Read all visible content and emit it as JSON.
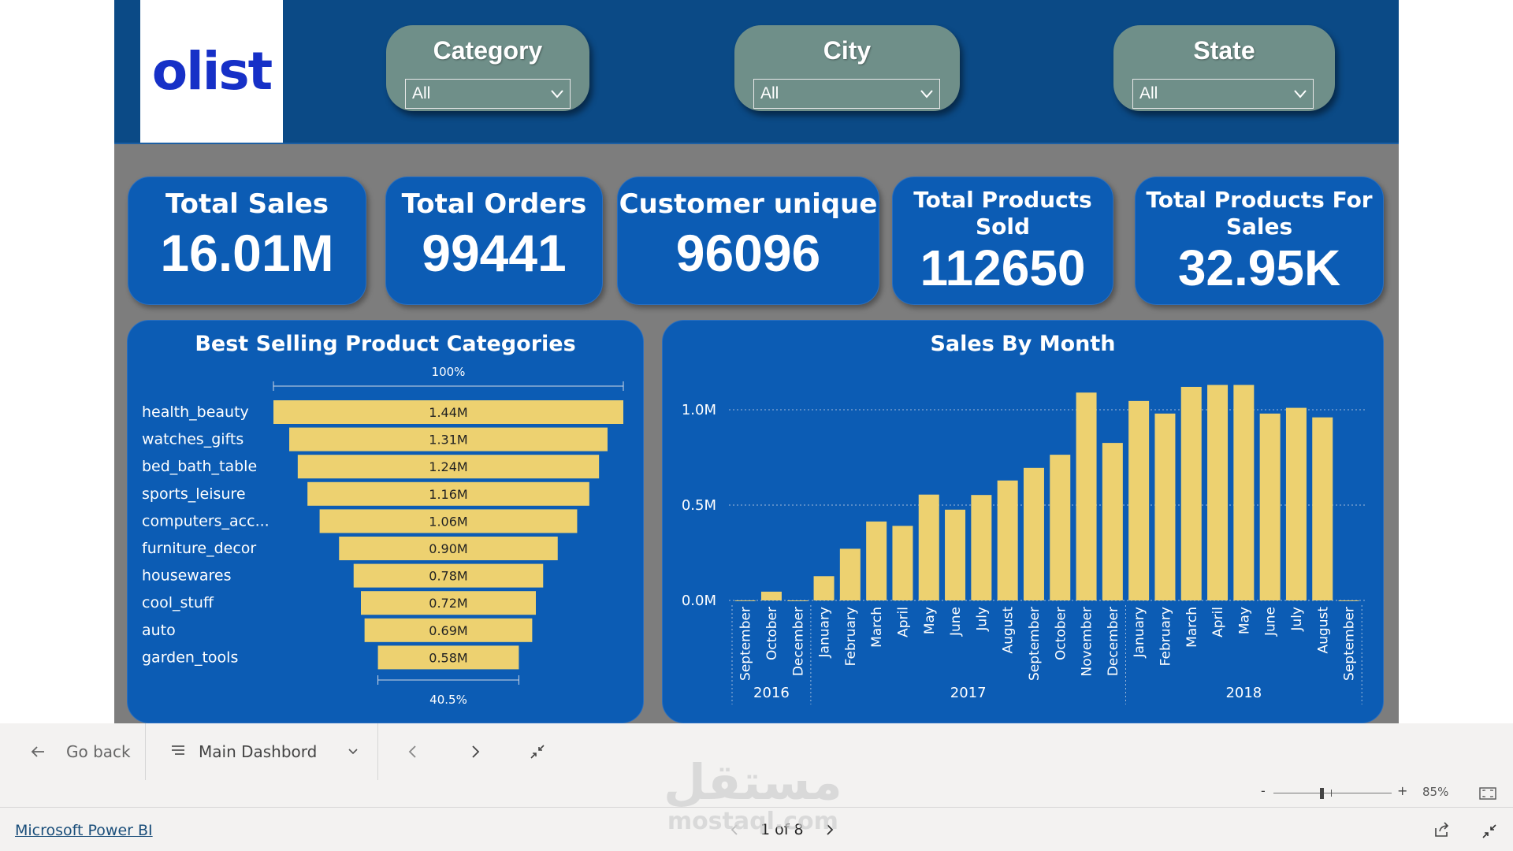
{
  "logo": {
    "text": "olist"
  },
  "filters": [
    {
      "label": "Category",
      "value": "All"
    },
    {
      "label": "City",
      "value": "All"
    },
    {
      "label": "State",
      "value": "All"
    }
  ],
  "kpis": [
    {
      "label": "Total Sales",
      "value": "16.01M"
    },
    {
      "label": "Total Orders",
      "value": "99441"
    },
    {
      "label": "Customer unique",
      "value": "96096"
    },
    {
      "label_line1": "Total Products",
      "label_line2": "Sold",
      "value": "112650"
    },
    {
      "label_line1": "Total Products For",
      "label_line2": "Sales",
      "value": "32.95K"
    }
  ],
  "colors": {
    "header_bg": "#0b4a86",
    "card_bg": "#0c5cb4",
    "bar_fill": "#edd170",
    "canvas_bg": "#7d7d7d",
    "slicer_bg": "#6f8f89",
    "logo_blue": "#1630c7"
  },
  "chart_data": [
    {
      "type": "bar",
      "orientation": "funnel",
      "title": "Best Selling Product Categories",
      "top_label": "100%",
      "bottom_label": "40.5%",
      "categories": [
        "health_beauty",
        "watches_gifts",
        "bed_bath_table",
        "sports_leisure",
        "computers_acc...",
        "furniture_decor",
        "housewares",
        "cool_stuff",
        "auto",
        "garden_tools"
      ],
      "values": [
        1.44,
        1.31,
        1.24,
        1.16,
        1.06,
        0.9,
        0.78,
        0.72,
        0.69,
        0.58
      ],
      "value_labels": [
        "1.44M",
        "1.31M",
        "1.24M",
        "1.16M",
        "1.06M",
        "0.90M",
        "0.78M",
        "0.72M",
        "0.69M",
        "0.58M"
      ],
      "unit": "M"
    },
    {
      "type": "bar",
      "title": "Sales By Month",
      "categories": [
        "September",
        "October",
        "December",
        "January",
        "February",
        "March",
        "April",
        "May",
        "June",
        "July",
        "August",
        "September",
        "October",
        "November",
        "December",
        "January",
        "February",
        "March",
        "April",
        "May",
        "June",
        "July",
        "August",
        "September"
      ],
      "year_groups": [
        {
          "year": "2016",
          "count": 3
        },
        {
          "year": "2017",
          "count": 12
        },
        {
          "year": "2018",
          "count": 9
        }
      ],
      "values": [
        0.0003,
        0.046,
        2e-05,
        0.127,
        0.271,
        0.414,
        0.391,
        0.555,
        0.476,
        0.553,
        0.629,
        0.695,
        0.764,
        1.09,
        0.826,
        1.046,
        0.98,
        1.12,
        1.13,
        1.13,
        0.98,
        1.01,
        0.96,
        0.0002
      ],
      "unit": "M",
      "ylim": [
        0,
        1.2
      ],
      "y_ticks": [
        "0.0M",
        "0.5M",
        "1.0M"
      ],
      "y_tick_values": [
        0,
        0.5,
        1.0
      ],
      "grid": true
    }
  ],
  "footer": {
    "go_back": "Go back",
    "page_name": "Main Dashbord",
    "zoom_minus": "-",
    "zoom_plus": "+",
    "zoom": "85%",
    "zoom_level": 0.85,
    "brand_link": "Microsoft Power BI",
    "page_indicator": "1 of 8"
  },
  "watermark": {
    "arabic": "مستقل",
    "latin": "mostaql.com"
  }
}
